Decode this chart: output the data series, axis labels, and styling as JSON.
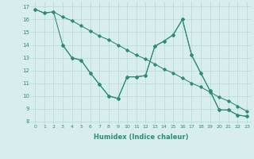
{
  "xlabel": "Humidex (Indice chaleur)",
  "xlim": [
    -0.5,
    23.5
  ],
  "ylim": [
    7.8,
    17.4
  ],
  "yticks": [
    8,
    9,
    10,
    11,
    12,
    13,
    14,
    15,
    16,
    17
  ],
  "xticks": [
    0,
    1,
    2,
    3,
    4,
    5,
    6,
    7,
    8,
    9,
    10,
    11,
    12,
    13,
    14,
    15,
    16,
    17,
    18,
    19,
    20,
    21,
    22,
    23
  ],
  "line_color": "#2e8b7a",
  "bg_color": "#d8eeee",
  "grid_color": "#b8d8d8",
  "line1_x": [
    0,
    1,
    2,
    3,
    4,
    5,
    6,
    7,
    8,
    9,
    10,
    11,
    12,
    13,
    14,
    15,
    16,
    17,
    18,
    19,
    20,
    21,
    22,
    23
  ],
  "line1_y": [
    16.8,
    16.5,
    16.6,
    16.2,
    15.9,
    15.5,
    15.1,
    14.7,
    14.4,
    14.0,
    13.6,
    13.2,
    12.9,
    12.5,
    12.1,
    11.8,
    11.4,
    11.0,
    10.7,
    10.3,
    9.9,
    9.6,
    9.2,
    8.8
  ],
  "line2_x": [
    0,
    1,
    2,
    3,
    4,
    5,
    6,
    7,
    8,
    9,
    10,
    11,
    12,
    13,
    14,
    15,
    16,
    17,
    18,
    19,
    20,
    21,
    22,
    23
  ],
  "line2_y": [
    16.8,
    16.5,
    16.6,
    14.0,
    13.0,
    12.8,
    11.8,
    10.9,
    10.0,
    9.8,
    11.5,
    11.5,
    11.6,
    13.9,
    14.3,
    14.8,
    16.0,
    13.2,
    11.8,
    10.4,
    8.9,
    8.9,
    8.5,
    8.4
  ],
  "line3_x": [
    3,
    4,
    5,
    6,
    7,
    8,
    9,
    10,
    11,
    12,
    13,
    14,
    15,
    16,
    17,
    18,
    19,
    20,
    21,
    22,
    23
  ],
  "line3_y": [
    14.0,
    13.0,
    12.8,
    11.8,
    10.9,
    10.0,
    9.8,
    11.5,
    11.5,
    11.6,
    13.9,
    14.3,
    14.8,
    16.0,
    13.2,
    11.8,
    10.4,
    8.9,
    8.9,
    8.5,
    8.4
  ]
}
